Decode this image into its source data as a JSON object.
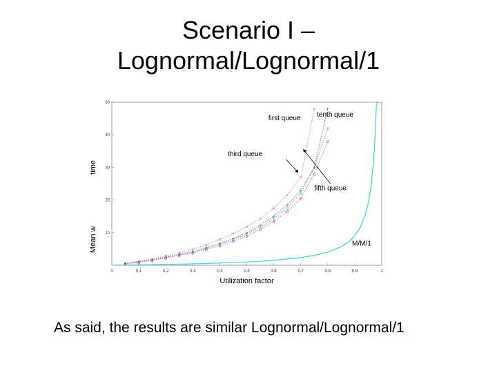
{
  "title": {
    "line1": "Scenario I –",
    "line2": "Lognormal/Lognormal/1"
  },
  "caption": "As said, the results are similar Lognormal/Lognormal/1",
  "chart_data": {
    "type": "line",
    "xlabel": "Utilization factor",
    "ylabel": "Mean w",
    "ylabel_extra": "time",
    "xlim": [
      0,
      1
    ],
    "ylim": [
      0,
      50
    ],
    "xticks": [
      "0",
      "0.1",
      "0.2",
      "0.3",
      "0.4",
      "0.5",
      "0.6",
      "0.7",
      "0.8",
      "0.9",
      "1"
    ],
    "yticks": [
      "10",
      "20",
      "30",
      "40",
      "50"
    ],
    "grid": false,
    "annotations": [
      {
        "text": "first queue",
        "x": 0.58,
        "y": 44.5
      },
      {
        "text": "tenth queue",
        "x": 0.76,
        "y": 45.5
      },
      {
        "text": "third queue",
        "x": 0.43,
        "y": 33.5
      },
      {
        "text": "fifth queue",
        "x": 0.75,
        "y": 23
      },
      {
        "text": "M/M/1",
        "x": 0.89,
        "y": 6
      }
    ],
    "series": [
      {
        "name": "M/M/1",
        "color": "#3cd3d3",
        "style": "solid",
        "x": [
          0.0,
          0.1,
          0.2,
          0.3,
          0.4,
          0.5,
          0.6,
          0.7,
          0.75,
          0.8,
          0.85,
          0.88,
          0.9,
          0.92,
          0.94,
          0.95,
          0.96,
          0.97,
          0.975,
          0.98,
          0.985
        ],
        "y": [
          0,
          0.11,
          0.25,
          0.43,
          0.67,
          1.0,
          1.5,
          2.33,
          3.0,
          4.0,
          5.67,
          7.33,
          9.0,
          11.5,
          15.67,
          19.0,
          24.0,
          32.3,
          39.0,
          49.0,
          50
        ]
      },
      {
        "name": "first queue",
        "color": "#e05a5a",
        "style": "dotted",
        "marker": "×",
        "x": [
          0.05,
          0.1,
          0.15,
          0.2,
          0.25,
          0.3,
          0.35,
          0.4,
          0.45,
          0.5,
          0.55,
          0.6,
          0.65,
          0.7,
          0.72,
          0.75
        ],
        "y": [
          0.6,
          1.3,
          2.0,
          2.9,
          3.8,
          4.9,
          6.3,
          7.9,
          9.7,
          11.8,
          14.3,
          17.5,
          21.5,
          27.0,
          35.0,
          48.0
        ]
      },
      {
        "name": "tenth queue",
        "color": "#3f3fd8",
        "style": "dotted",
        "marker": "+",
        "x": [
          0.05,
          0.1,
          0.15,
          0.2,
          0.25,
          0.3,
          0.35,
          0.4,
          0.45,
          0.5,
          0.55,
          0.6,
          0.65,
          0.7,
          0.75,
          0.8
        ],
        "y": [
          0.5,
          1.1,
          1.7,
          2.5,
          3.3,
          4.2,
          5.4,
          6.7,
          8.2,
          10.0,
          12.3,
          15.0,
          18.5,
          23.0,
          30.0,
          48.0
        ]
      },
      {
        "name": "third queue",
        "color": "#35b035",
        "style": "dotted",
        "marker": "◊",
        "x": [
          0.05,
          0.1,
          0.15,
          0.2,
          0.25,
          0.3,
          0.35,
          0.4,
          0.45,
          0.5,
          0.55,
          0.6,
          0.65,
          0.7,
          0.75,
          0.8
        ],
        "y": [
          0.5,
          1.0,
          1.6,
          2.4,
          3.2,
          4.1,
          5.2,
          6.4,
          7.9,
          9.6,
          11.7,
          14.3,
          17.5,
          22.0,
          30.0,
          42.0
        ]
      },
      {
        "name": "fifth queue",
        "color": "#b040b0",
        "style": "dotted",
        "marker": "o",
        "x": [
          0.05,
          0.1,
          0.15,
          0.2,
          0.25,
          0.3,
          0.35,
          0.4,
          0.45,
          0.5,
          0.55,
          0.6,
          0.65,
          0.7,
          0.75,
          0.8
        ],
        "y": [
          0.4,
          0.9,
          1.5,
          2.2,
          3.0,
          3.8,
          4.9,
          6.0,
          7.4,
          9.0,
          11.0,
          13.5,
          16.5,
          20.5,
          28.0,
          38.0
        ]
      }
    ]
  }
}
